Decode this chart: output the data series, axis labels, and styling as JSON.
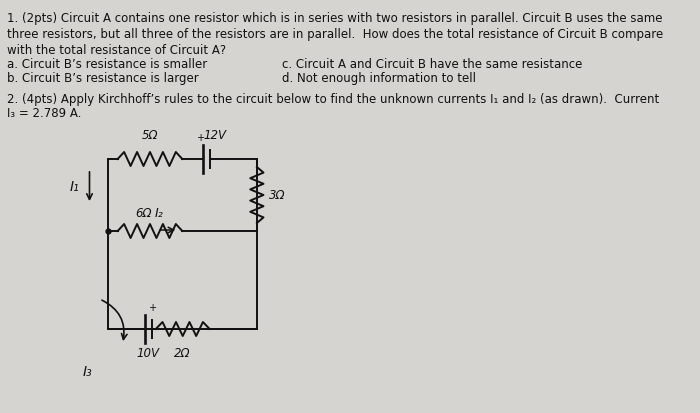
{
  "bg_color": "#d6d4d0",
  "text_color": "#1a1a1a",
  "q1_line1": "1. (2pts) Circuit A contains one resistor which is in series with two resistors in parallel. Circuit B uses the same",
  "q1_line2": "three resistors, but all three of the resistors are in parallel.  How does the total resistance of Circuit B compare",
  "q1_line3": "with the total resistance of Circuit A?",
  "ans_a": "a. Circuit B’s resistance is smaller",
  "ans_b": "b. Circuit B’s resistance is larger",
  "ans_c": "c. Circuit A and Circuit B have the same resistance",
  "ans_d": "d. Not enough information to tell",
  "q2_line1": "2. (4pts) Apply Kirchhoff’s rules to the circuit below to find the unknown currents I₁ and I₂ (as drawn).  Current",
  "q2_line2": "I₃ = 2.789 A.",
  "figsize": [
    7.0,
    4.14
  ],
  "dpi": 100
}
